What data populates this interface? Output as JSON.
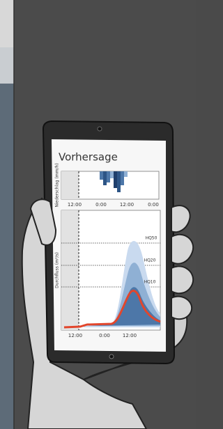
{
  "screen": {
    "title": "Vorhersage",
    "precip_axis_label": "Niederschlag (mm/h)",
    "precip_ticks": [
      "12:00",
      "0:00",
      "12:00",
      "0:00"
    ],
    "flow_axis_label": "Durchfluss (m³/s)",
    "flow_ticks": [
      "12:00",
      "0:00",
      "12:00"
    ],
    "thresholds": [
      "HQ50",
      "HQ20",
      "HQ10"
    ]
  }
}
